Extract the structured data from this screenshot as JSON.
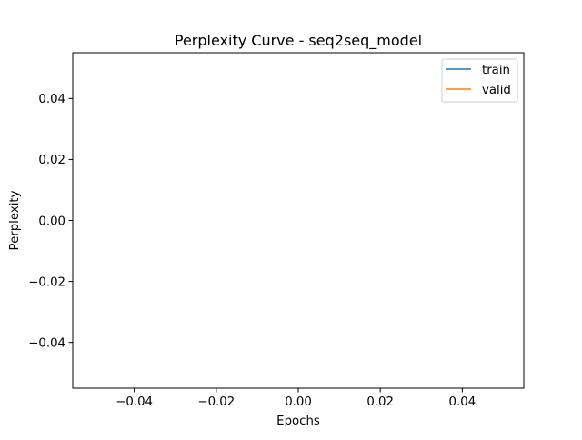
{
  "chart_data": {
    "type": "line",
    "title": "Perplexity Curve - seq2seq_model",
    "xlabel": "Epochs",
    "ylabel": "Perplexity",
    "xlim": [
      -0.055,
      0.055
    ],
    "ylim": [
      -0.055,
      0.055
    ],
    "xticks": [
      -0.04,
      -0.02,
      0.0,
      0.02,
      0.04
    ],
    "yticks": [
      -0.04,
      -0.02,
      0.0,
      0.02,
      0.04
    ],
    "xtick_labels": [
      "−0.04",
      "−0.02",
      "0.00",
      "0.02",
      "0.04"
    ],
    "ytick_labels": [
      "−0.04",
      "−0.02",
      "0.00",
      "0.02",
      "0.04"
    ],
    "grid": false,
    "legend_position": "top-right",
    "series": [
      {
        "name": "train",
        "color": "#1f77b4",
        "x": [],
        "y": []
      },
      {
        "name": "valid",
        "color": "#ff7f0e",
        "x": [],
        "y": []
      }
    ]
  }
}
